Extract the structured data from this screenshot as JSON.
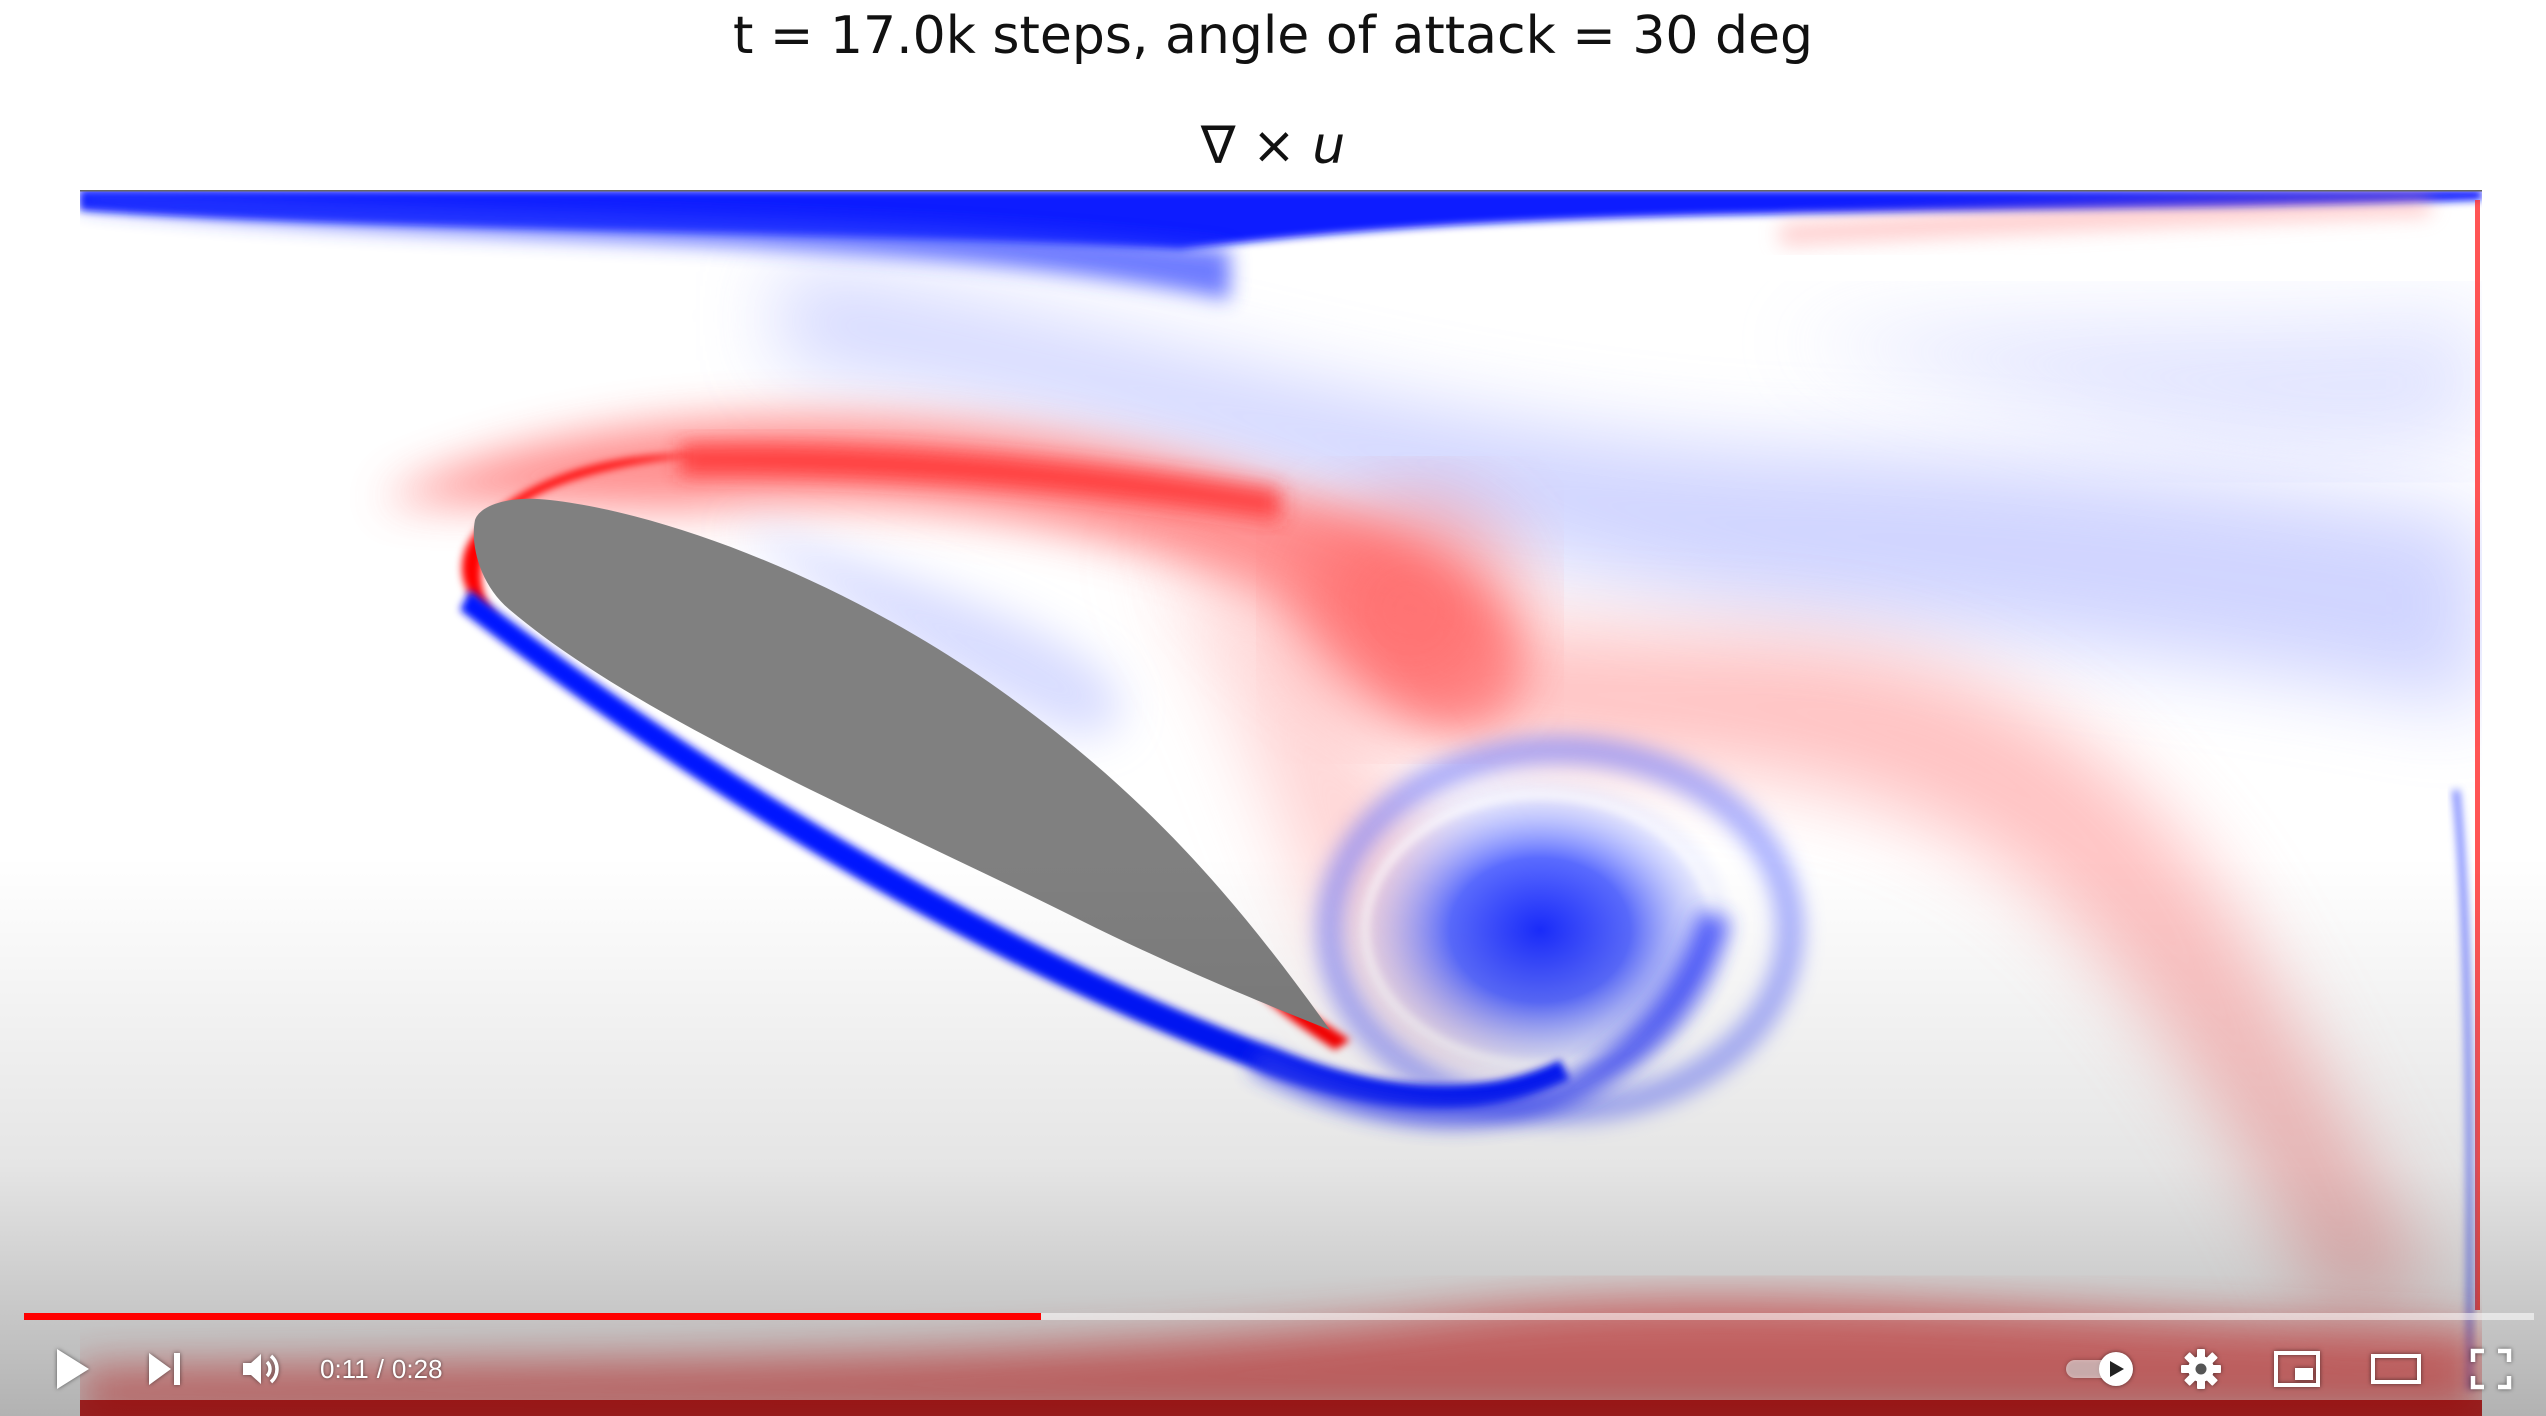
{
  "figure": {
    "title": "t = 17.0k steps, angle of attack = 30 deg",
    "subtitle_operator": "∇ × ",
    "subtitle_var": "u"
  },
  "player": {
    "current_time": "0:11",
    "separator": "/",
    "duration": "0:28",
    "progress_fraction": 0.405,
    "progress_color": "#ff0000",
    "autoplay_on": true
  },
  "icons": {
    "play": "play-icon",
    "next": "next-icon",
    "volume": "volume-icon",
    "autoplay": "autoplay-toggle-icon",
    "settings": "gear-icon",
    "miniplayer": "miniplayer-icon",
    "theater": "theater-mode-icon",
    "fullscreen": "fullscreen-icon"
  },
  "colors": {
    "positive_vorticity": "#ff0000",
    "negative_vorticity": "#0000ff",
    "airfoil": "#808080"
  }
}
